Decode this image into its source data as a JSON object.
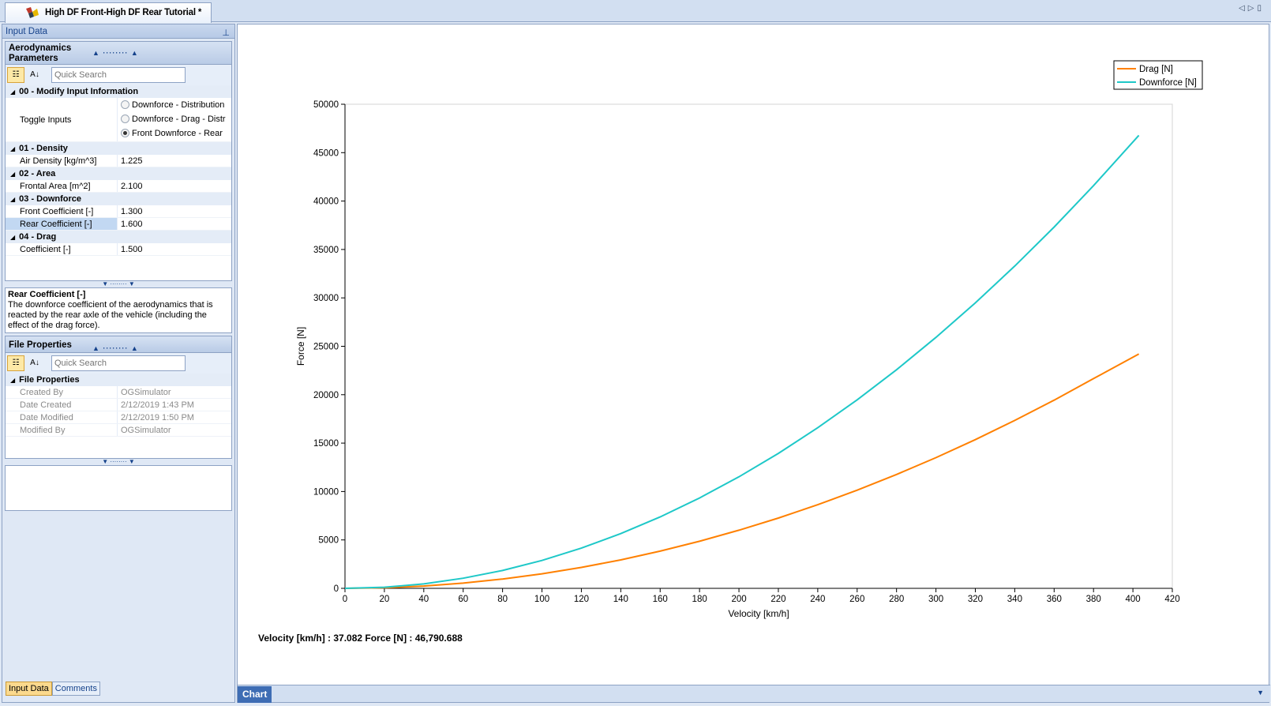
{
  "document_tab": {
    "title": "High DF Front-High DF Rear Tutorial *"
  },
  "left_panel": {
    "title": "Input Data",
    "aero_section": {
      "title": "Aerodynamics Parameters",
      "search_placeholder": "Quick Search",
      "categories": [
        {
          "label": "00 - Modify Input Information"
        },
        {
          "label": "01 - Density"
        },
        {
          "label": "02 - Area"
        },
        {
          "label": "03 - Downforce"
        },
        {
          "label": "04 - Drag"
        }
      ],
      "toggle_inputs": {
        "label": "Toggle Inputs",
        "options": [
          "Downforce - Distribution",
          "Downforce - Drag - Distr",
          "Front Downforce - Rear"
        ],
        "selected_index": 2
      },
      "rows": {
        "density": {
          "k": "Air Density [kg/m^3]",
          "v": "1.225"
        },
        "area": {
          "k": "Frontal Area [m^2]",
          "v": "2.100"
        },
        "front": {
          "k": "Front Coefficient [-]",
          "v": "1.300"
        },
        "rear": {
          "k": "Rear Coefficient [-]",
          "v": "1.600"
        },
        "drag": {
          "k": "Coefficient [-]",
          "v": "1.500"
        }
      },
      "description": {
        "title": "Rear Coefficient [-]",
        "text": "The downforce coefficient of the aerodynamics that is reacted by the rear axle of the vehicle (including the effect of the drag force)."
      }
    },
    "file_section": {
      "title": "File Properties",
      "search_placeholder": "Quick Search",
      "category": "File Properties",
      "rows": [
        {
          "k": "Created By",
          "v": "OGSimulator"
        },
        {
          "k": "Date Created",
          "v": "2/12/2019 1:43 PM"
        },
        {
          "k": "Date Modified",
          "v": "2/12/2019 1:50 PM"
        },
        {
          "k": "Modified By",
          "v": "OGSimulator"
        }
      ]
    },
    "bottom_tabs": [
      "Input Data",
      "Comments"
    ]
  },
  "chart_area": {
    "readout": "Velocity [km/h] : 37.082 Force [N] : 46,790.688",
    "tab_label": "Chart"
  },
  "chart_data": {
    "type": "line",
    "title": "",
    "xlabel": "Velocity [km/h]",
    "ylabel": "Force [N]",
    "xlim": [
      0,
      420
    ],
    "ylim": [
      0,
      50000
    ],
    "xticks": [
      0,
      20,
      40,
      60,
      80,
      100,
      120,
      140,
      160,
      180,
      200,
      220,
      240,
      260,
      280,
      300,
      320,
      340,
      360,
      380,
      400,
      420
    ],
    "yticks": [
      0,
      5000,
      10000,
      15000,
      20000,
      25000,
      30000,
      35000,
      40000,
      45000,
      50000
    ],
    "grid": false,
    "legend": "top-right",
    "series": [
      {
        "name": "Drag [N]",
        "color": "#ff8000",
        "x": [
          0,
          20,
          40,
          60,
          80,
          100,
          120,
          140,
          160,
          180,
          200,
          220,
          240,
          260,
          280,
          300,
          320,
          340,
          360,
          380,
          403
        ],
        "y": [
          0,
          60,
          240,
          540,
          960,
          1500,
          2160,
          2940,
          3840,
          4860,
          6000,
          7260,
          8640,
          10140,
          11760,
          13500,
          15360,
          17340,
          19440,
          21660,
          24200
        ]
      },
      {
        "name": "Downforce [N]",
        "color": "#1ec8c8",
        "x": [
          0,
          20,
          40,
          60,
          80,
          100,
          120,
          140,
          160,
          180,
          200,
          220,
          240,
          260,
          280,
          300,
          320,
          340,
          360,
          380,
          403
        ],
        "y": [
          0,
          115,
          460,
          1040,
          1840,
          2880,
          4150,
          5650,
          7370,
          9330,
          11520,
          13940,
          16590,
          19470,
          22580,
          25920,
          29490,
          33290,
          37320,
          41590,
          46790
        ]
      }
    ]
  }
}
